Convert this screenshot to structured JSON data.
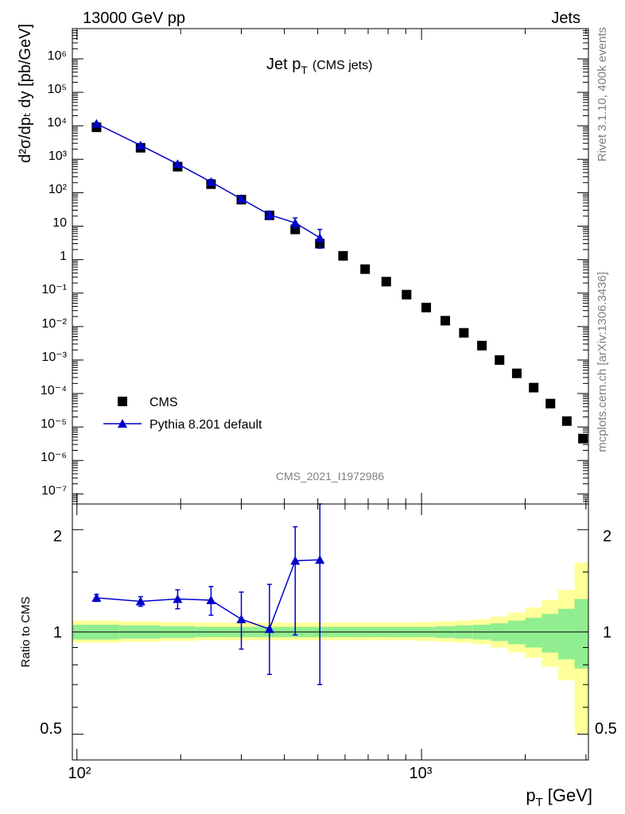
{
  "header": {
    "left": "13000 GeV pp",
    "right": "Jets"
  },
  "plot_title": {
    "main": "Jet p",
    "sub": "T",
    "paren": "(CMS jets)"
  },
  "side_labels": {
    "rivet": "Rivet 3.1.10,  400k events",
    "mcplots": "mcplots.cern.ch [arXiv:1306.3436]"
  },
  "analysis_id": "CMS_2021_I1972986",
  "axes": {
    "ylabel_main": "d²σ/dpₜ dy [pb/GeV]",
    "ylabel_ratio": "Ratio to CMS",
    "xlabel": "p",
    "xlabel_sub": "T",
    "xlabel_unit": "[GeV]",
    "x_tick_labels": [
      "10²",
      "10³"
    ],
    "y_tick_labels": [
      "10⁻⁷",
      "10⁻⁶",
      "10⁻⁵",
      "10⁻⁴",
      "10⁻³",
      "10⁻²",
      "10⁻¹",
      "1",
      "10",
      "10²",
      "10³",
      "10⁴",
      "10⁵",
      "10⁶"
    ],
    "ratio_tick_labels": [
      "0.5",
      "1",
      "2"
    ]
  },
  "legend": {
    "cms": "CMS",
    "pythia": "Pythia 8.201 default"
  },
  "colors": {
    "pythia": "#0000cc",
    "data": "#000000",
    "band_inner": "#90ee90",
    "band_outer": "#ffff99"
  },
  "chart_data": {
    "type": "scatter",
    "x_scale": "log",
    "y_scale": "log",
    "xlim": [
      97,
      3050
    ],
    "ylim": [
      5e-08,
      8000000.0
    ],
    "ratio_ylim": [
      0.42,
      2.38
    ],
    "series": [
      {
        "name": "CMS",
        "x": [
          114,
          153,
          196,
          245,
          300,
          362,
          430,
          507,
          592,
          686,
          790,
          905,
          1032,
          1172,
          1327,
          1497,
          1684,
          1890,
          2116,
          2366,
          2640,
          2940
        ],
        "y": [
          9000,
          2200,
          600,
          180,
          62,
          21,
          8,
          3,
          1.3,
          0.52,
          0.22,
          0.09,
          0.037,
          0.015,
          0.0065,
          0.0027,
          0.001,
          0.0004,
          0.00015,
          5e-05,
          1.5e-05,
          4.5e-06
        ]
      },
      {
        "name": "Pythia 8.201 default",
        "x": [
          114,
          153,
          196,
          245,
          300,
          362,
          430,
          507
        ],
        "y": [
          11500,
          2600,
          720,
          210,
          65,
          22,
          12.5,
          4.5
        ],
        "y_err_up": [
          900,
          250,
          90,
          40,
          12,
          6,
          5,
          3.5
        ],
        "y_err_down": [
          900,
          250,
          90,
          40,
          12,
          6,
          4,
          2.3
        ]
      }
    ],
    "ratio": {
      "x": [
        114,
        153,
        196,
        245,
        300,
        362,
        430,
        507
      ],
      "y": [
        1.26,
        1.23,
        1.25,
        1.24,
        1.09,
        1.02,
        1.62,
        1.63
      ],
      "y_err_up": [
        0.03,
        0.04,
        0.08,
        0.12,
        0.22,
        0.36,
        0.42,
        0.75
      ],
      "y_err_down": [
        0.03,
        0.04,
        0.08,
        0.12,
        0.2,
        0.27,
        0.64,
        0.93
      ]
    },
    "uncertainty_band": {
      "edges": [
        97,
        133,
        174,
        220,
        272,
        331,
        396,
        468,
        549,
        638,
        737,
        846,
        967,
        1101,
        1248,
        1410,
        1588,
        1784,
        1999,
        2235,
        2494,
        2780,
        3050
      ],
      "inner_low": [
        0.95,
        0.955,
        0.96,
        0.965,
        0.965,
        0.965,
        0.965,
        0.965,
        0.965,
        0.965,
        0.965,
        0.965,
        0.965,
        0.96,
        0.955,
        0.95,
        0.94,
        0.92,
        0.9,
        0.87,
        0.83,
        0.78
      ],
      "inner_high": [
        1.05,
        1.045,
        1.04,
        1.035,
        1.035,
        1.035,
        1.035,
        1.035,
        1.035,
        1.035,
        1.035,
        1.035,
        1.035,
        1.04,
        1.045,
        1.05,
        1.06,
        1.08,
        1.1,
        1.13,
        1.17,
        1.25
      ],
      "outer_low": [
        0.93,
        0.935,
        0.94,
        0.945,
        0.945,
        0.945,
        0.945,
        0.945,
        0.945,
        0.945,
        0.945,
        0.945,
        0.94,
        0.935,
        0.93,
        0.92,
        0.9,
        0.87,
        0.84,
        0.79,
        0.72,
        0.5
      ],
      "outer_high": [
        1.08,
        1.075,
        1.07,
        1.065,
        1.065,
        1.065,
        1.065,
        1.065,
        1.065,
        1.065,
        1.065,
        1.065,
        1.07,
        1.075,
        1.08,
        1.09,
        1.11,
        1.14,
        1.18,
        1.24,
        1.33,
        1.6
      ]
    }
  }
}
